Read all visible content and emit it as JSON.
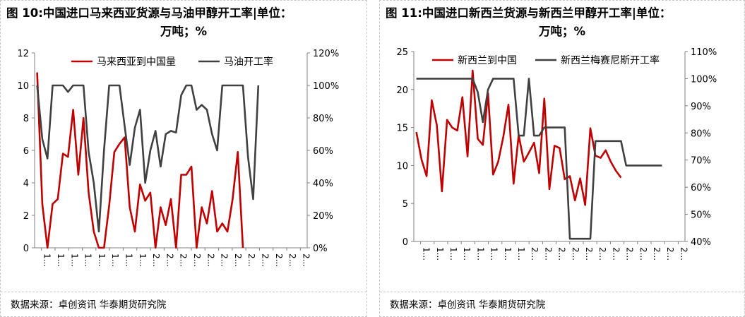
{
  "charts": [
    {
      "figure_label": "图 10:",
      "title": "中国进口马来西亚货源与马油甲醇开工率|单位：",
      "title_cont": "万吨；%",
      "source": "数据来源：卓创资讯  华泰期货研究院",
      "left_ticks": [
        "0",
        "2",
        "4",
        "6",
        "8",
        "10",
        "12"
      ],
      "right_ticks": [
        "0%",
        "20%",
        "40%",
        "60%",
        "80%",
        "100%",
        "120%"
      ],
      "x_tick_text": [
        "1...",
        "1...",
        "1...",
        "1...",
        "1...",
        "1...",
        "1...",
        "1...",
        "2...",
        "2...",
        "2...",
        "2...",
        "2...",
        "2...",
        "2...",
        "2...",
        "2...",
        "2...",
        "2...",
        "2..."
      ]
    },
    {
      "figure_label": "图 11:",
      "title": "中国进口新西兰货源与新西兰甲醇开工率|单位：",
      "title_cont": "万吨；%",
      "source": "数据来源：卓创资讯  华泰期货研究院",
      "left_ticks": [
        "0",
        "5",
        "10",
        "15",
        "20",
        "25"
      ],
      "right_ticks": [
        "40%",
        "50%",
        "60%",
        "70%",
        "80%",
        "90%",
        "100%",
        "110%"
      ],
      "x_tick_text": [
        "1...",
        "1...",
        "1...",
        "1...",
        "1...",
        "1...",
        "1...",
        "1...",
        "2...",
        "2...",
        "2...",
        "2...",
        "2...",
        "2...",
        "2...",
        "2...",
        "2...",
        "2...",
        "2...",
        "2..."
      ]
    }
  ],
  "chart_data": [
    {
      "type": "line",
      "title": "中国进口马来西亚货源与马油甲醇开工率|单位：万吨；%",
      "x_count": 53,
      "y_left_lim": [
        0,
        12
      ],
      "y_right_lim": [
        0,
        120
      ],
      "legend_position": "top",
      "grid": false,
      "series": [
        {
          "name": "马来西亚到中国量",
          "axis": "left",
          "color": "#c00000",
          "values": [
            10.8,
            2.7,
            0.0,
            2.7,
            3.0,
            5.8,
            5.6,
            8.5,
            4.5,
            8.0,
            3.4,
            1.0,
            0.0,
            0.0,
            2.6,
            5.9,
            6.4,
            6.8,
            2.5,
            1.0,
            3.9,
            2.9,
            3.4,
            0.0,
            2.5,
            1.4,
            3.0,
            0.0,
            4.5,
            4.5,
            5.0,
            0.0,
            2.5,
            1.5,
            3.5,
            1.0,
            1.5,
            1.0,
            3.0,
            5.9,
            0.0,
            null,
            null,
            null,
            null,
            null,
            null,
            null,
            null,
            null,
            null,
            null,
            null
          ]
        },
        {
          "name": "马油开工率",
          "axis": "right",
          "color": "#404040",
          "values": [
            100,
            67,
            55,
            100,
            100,
            100,
            96,
            100,
            100,
            100,
            59,
            40,
            10,
            60,
            100,
            100,
            100,
            75,
            51,
            74,
            85,
            40,
            60,
            72,
            50,
            70,
            72,
            71,
            94,
            100,
            100,
            85,
            88,
            85,
            70,
            60,
            100,
            100,
            100,
            100,
            100,
            56,
            30,
            100
          ]
        }
      ]
    },
    {
      "type": "line",
      "title": "中国进口新西兰货源与新西兰甲醇开工率|单位：万吨；%",
      "x_count": 53,
      "y_left_lim": [
        0,
        25
      ],
      "y_right_lim": [
        40,
        110
      ],
      "legend_position": "top",
      "grid": false,
      "series": [
        {
          "name": "新西兰到中国",
          "axis": "left",
          "color": "#c00000",
          "values": [
            14.4,
            10.8,
            8.6,
            18.6,
            15.3,
            6.6,
            16.0,
            15.0,
            14.6,
            19.0,
            11.2,
            22.5,
            13.5,
            12.7,
            19.5,
            8.8,
            10.5,
            13.8,
            18.0,
            7.6,
            14.0,
            10.5,
            11.7,
            13.0,
            9.0,
            18.8,
            6.9,
            12.6,
            12.3,
            8.2,
            8.6,
            5.4,
            8.3,
            4.8,
            14.9,
            11.3,
            11.0,
            12.0,
            10.5,
            9.3,
            8.4
          ]
        },
        {
          "name": "新西兰梅赛尼斯开工率",
          "axis": "right",
          "color": "#404040",
          "values": [
            100,
            100,
            100,
            100,
            100,
            100,
            100,
            100,
            100,
            100,
            100,
            100,
            95,
            84,
            96,
            100,
            100,
            100,
            100,
            100,
            79,
            79,
            100,
            79,
            79,
            82,
            82,
            82,
            82,
            82,
            41,
            41,
            41,
            41,
            41,
            77,
            77,
            77,
            77,
            77,
            77,
            68,
            68,
            68,
            68,
            68,
            68,
            68,
            68
          ]
        }
      ]
    }
  ]
}
